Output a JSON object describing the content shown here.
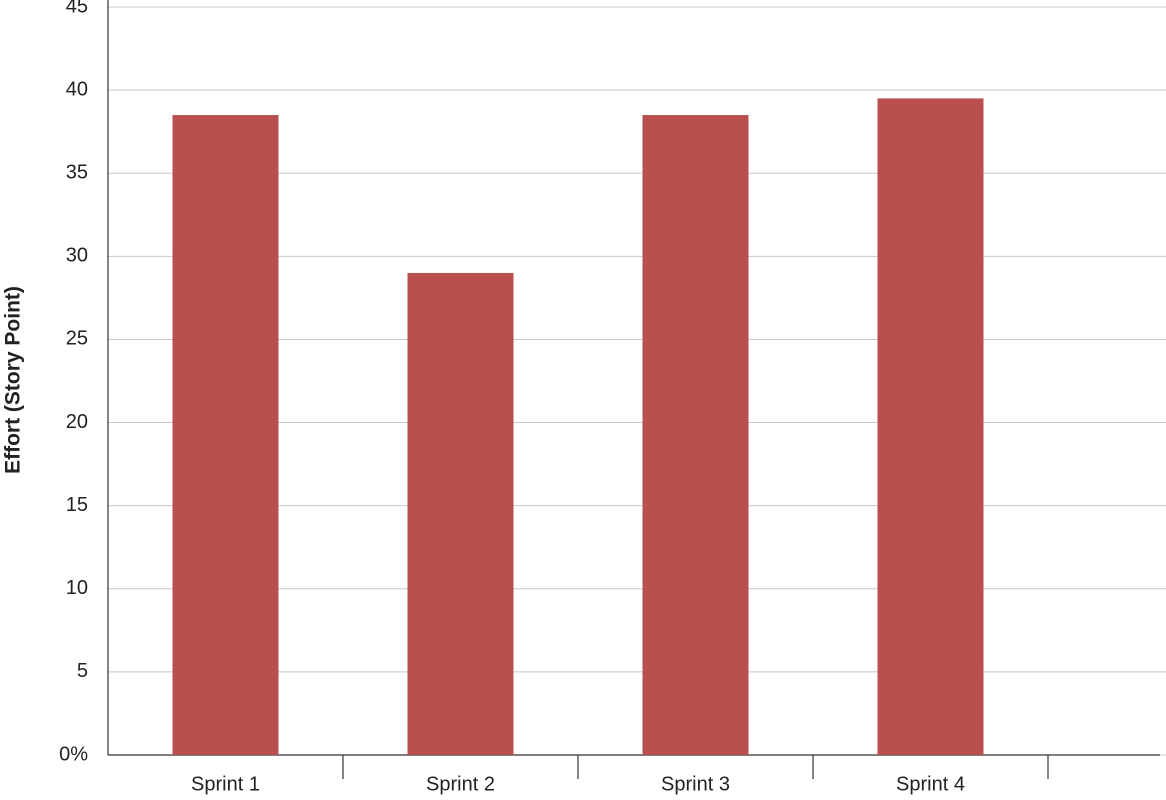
{
  "chart_data": {
    "type": "bar",
    "y_label": "Effort (Story Point)",
    "categories": [
      "Sprint 1",
      "Sprint 2",
      "Sprint 3",
      "Sprint 4"
    ],
    "values": [
      38.5,
      29,
      38.5,
      39.5
    ],
    "color": "#b9504f",
    "ylim": [
      0,
      45
    ],
    "yticks": [
      {
        "value": 0,
        "label": "0%"
      },
      5,
      10,
      15,
      20,
      25,
      30,
      35,
      40,
      45
    ],
    "grid": true
  }
}
